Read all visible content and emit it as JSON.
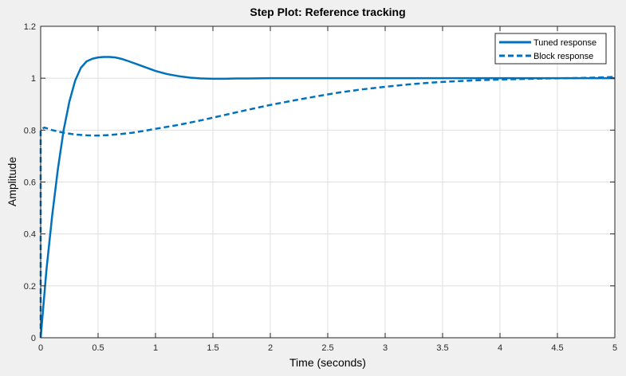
{
  "chart_data": {
    "type": "line",
    "title": "Step Plot: Reference tracking",
    "xlabel": "Time (seconds)",
    "ylabel": "Amplitude",
    "xlim": [
      0,
      5
    ],
    "ylim": [
      0,
      1.2
    ],
    "x_ticks": [
      0,
      0.5,
      1,
      1.5,
      2,
      2.5,
      3,
      3.5,
      4,
      4.5,
      5
    ],
    "x_tick_labels": [
      "0",
      "0.5",
      "1",
      "1.5",
      "2",
      "2.5",
      "3",
      "3.5",
      "4",
      "4.5",
      "5"
    ],
    "y_ticks": [
      0,
      0.2,
      0.4,
      0.6,
      0.8,
      1,
      1.2
    ],
    "y_tick_labels": [
      "0",
      "0.2",
      "0.4",
      "0.6",
      "0.8",
      "1",
      "1.2"
    ],
    "grid": true,
    "legend_position": "top-right",
    "series": [
      {
        "name": "Tuned response",
        "style": "solid",
        "color": "#0072bd",
        "x": [
          0,
          0.05,
          0.1,
          0.15,
          0.2,
          0.25,
          0.3,
          0.35,
          0.4,
          0.45,
          0.5,
          0.55,
          0.6,
          0.65,
          0.7,
          0.75,
          0.8,
          0.85,
          0.9,
          0.95,
          1.0,
          1.1,
          1.2,
          1.3,
          1.4,
          1.5,
          1.6,
          1.7,
          1.8,
          2.0,
          2.5,
          3.0,
          3.5,
          4.0,
          4.5,
          5.0
        ],
        "y": [
          0,
          0.26,
          0.47,
          0.65,
          0.8,
          0.91,
          0.99,
          1.04,
          1.065,
          1.075,
          1.08,
          1.082,
          1.082,
          1.08,
          1.075,
          1.068,
          1.06,
          1.052,
          1.044,
          1.036,
          1.028,
          1.016,
          1.008,
          1.002,
          0.999,
          0.998,
          0.998,
          0.999,
          0.999,
          1.0,
          1.0,
          1.0,
          1.0,
          1.0,
          1.0,
          1.0
        ]
      },
      {
        "name": "Block response",
        "style": "dashed",
        "color": "#0072bd",
        "x": [
          0,
          0.0,
          0.03,
          0.07,
          0.1,
          0.15,
          0.2,
          0.3,
          0.4,
          0.5,
          0.6,
          0.7,
          0.8,
          0.9,
          1.0,
          1.2,
          1.4,
          1.6,
          1.8,
          2.0,
          2.2,
          2.4,
          2.6,
          2.8,
          3.0,
          3.2,
          3.4,
          3.6,
          3.8,
          4.0,
          4.2,
          4.4,
          4.6,
          4.8,
          5.0
        ],
        "y": [
          0,
          0.8,
          0.81,
          0.805,
          0.8,
          0.795,
          0.79,
          0.783,
          0.78,
          0.779,
          0.781,
          0.785,
          0.79,
          0.797,
          0.805,
          0.82,
          0.838,
          0.858,
          0.878,
          0.897,
          0.914,
          0.93,
          0.945,
          0.957,
          0.967,
          0.976,
          0.983,
          0.988,
          0.992,
          0.995,
          0.997,
          0.999,
          1.0,
          1.002,
          1.005
        ]
      }
    ]
  }
}
